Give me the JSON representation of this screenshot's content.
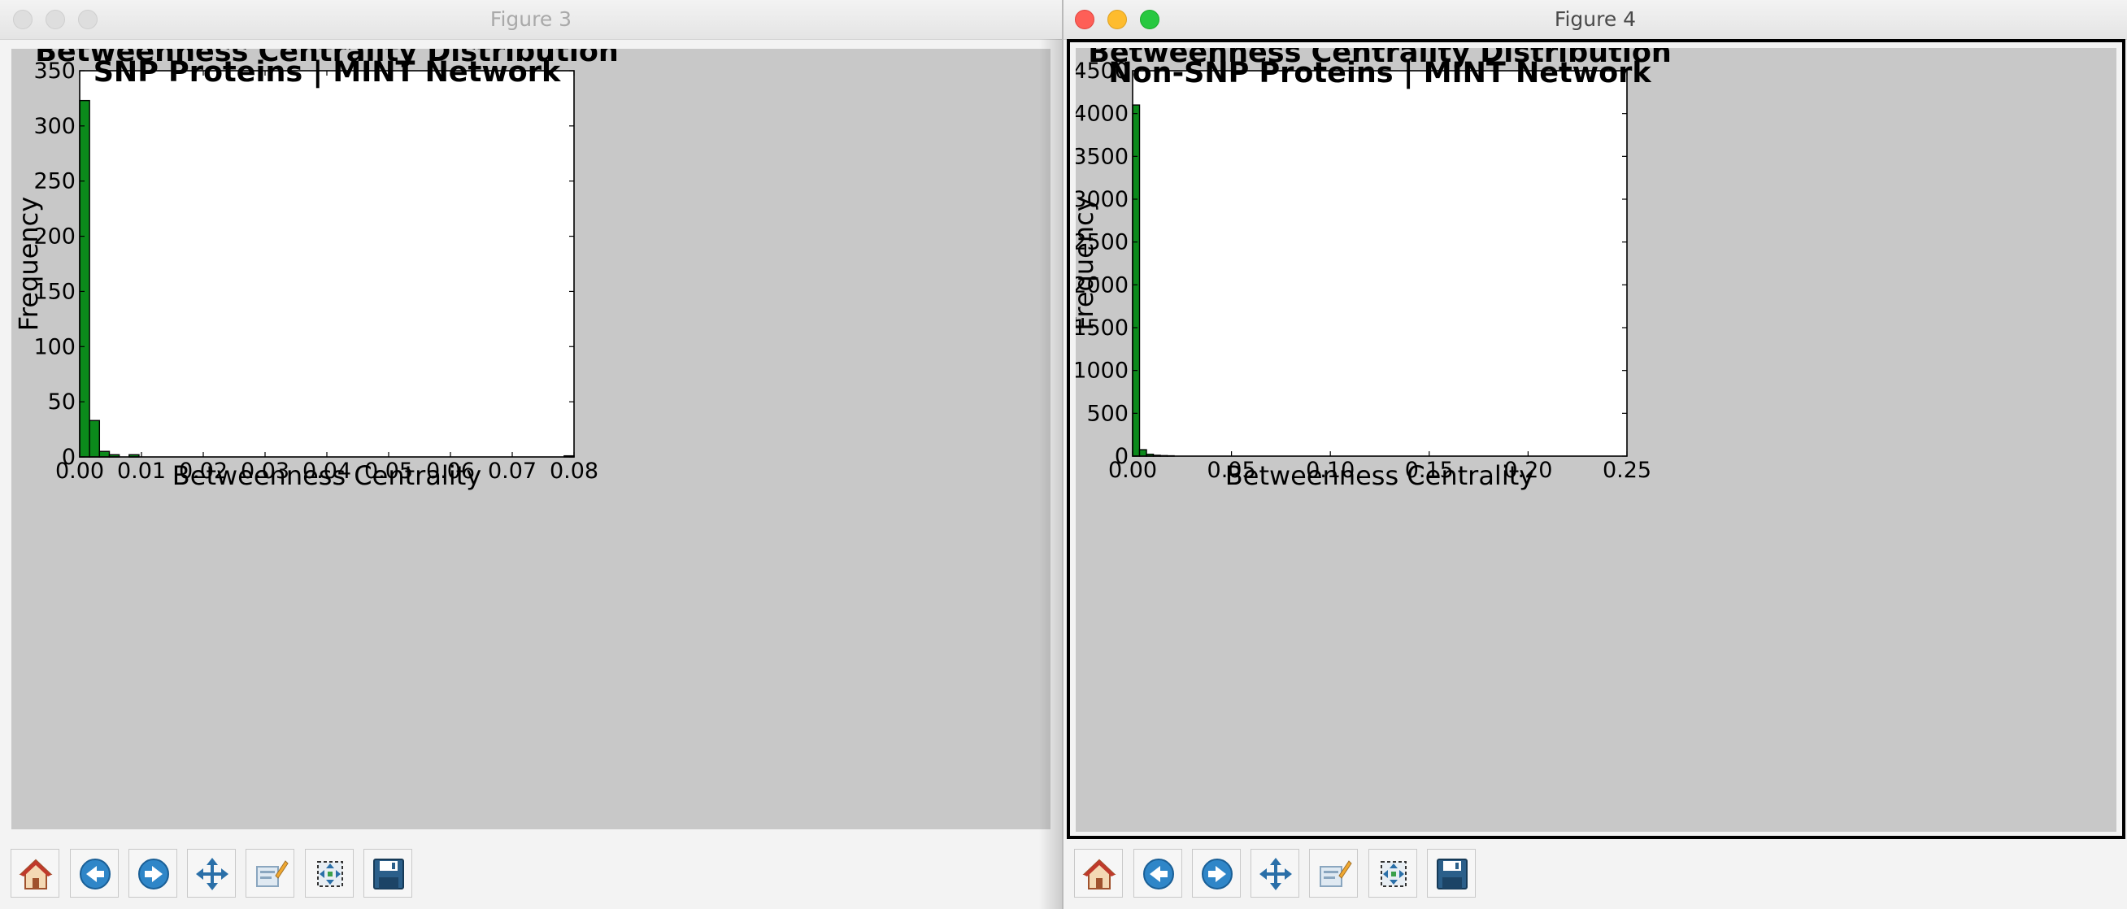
{
  "windows": [
    {
      "title": "Figure 3",
      "active": false
    },
    {
      "title": "Figure 4",
      "active": true
    }
  ],
  "colors": {
    "bar_fill": "#0b8a1b",
    "bar_edge": "#000000",
    "plot_bg": "#ffffff",
    "figure_bg": "#c8c8c8",
    "close": "#fe5f57",
    "minimize": "#febc2e",
    "zoom": "#28c840"
  },
  "toolbar_icons": [
    "home-icon",
    "back-arrow-icon",
    "forward-arrow-icon",
    "pan-icon",
    "configure-subplots-icon",
    "zoom-rect-icon",
    "save-icon"
  ],
  "chart_data": [
    {
      "type": "bar",
      "title": "Betweenness Centrality Distribution\nSNP Proteins | MINT Network",
      "title_lines": [
        "Betweenness Centrality Distribution",
        "SNP Proteins | MINT Network"
      ],
      "xlabel": "Betweenness Centrality",
      "ylabel": "Frequency",
      "xlim": [
        0,
        0.08
      ],
      "ylim": [
        0,
        350
      ],
      "xticks": [
        "0.00",
        "0.01",
        "0.02",
        "0.03",
        "0.04",
        "0.05",
        "0.06",
        "0.07",
        "0.08"
      ],
      "xtick_values": [
        0,
        0.01,
        0.02,
        0.03,
        0.04,
        0.05,
        0.06,
        0.07,
        0.08
      ],
      "yticks": [
        "0",
        "50",
        "100",
        "150",
        "200",
        "250",
        "300",
        "350"
      ],
      "ytick_values": [
        0,
        50,
        100,
        150,
        200,
        250,
        300,
        350
      ],
      "bin_width": 0.0016,
      "bins": [
        {
          "x": 0.0,
          "value": 323
        },
        {
          "x": 0.0016,
          "value": 33
        },
        {
          "x": 0.0032,
          "value": 5
        },
        {
          "x": 0.0048,
          "value": 2
        },
        {
          "x": 0.008,
          "value": 2
        },
        {
          "x": 0.0784,
          "value": 1
        }
      ],
      "grid": false,
      "legend": false
    },
    {
      "type": "bar",
      "title": "Betweenness Centrality Distribution\nNon-SNP Proteins | MINT Network",
      "title_lines": [
        "Betweenness Centrality Distribution",
        "Non-SNP Proteins | MINT Network"
      ],
      "xlabel": "Betweenness Centrality",
      "ylabel": "Frequency",
      "xlim": [
        0,
        0.25
      ],
      "ylim": [
        0,
        4500
      ],
      "xticks": [
        "0.00",
        "0.05",
        "0.10",
        "0.15",
        "0.20",
        "0.25"
      ],
      "xtick_values": [
        0,
        0.05,
        0.1,
        0.15,
        0.2,
        0.25
      ],
      "yticks": [
        "0",
        "500",
        "1000",
        "1500",
        "2000",
        "2500",
        "3000",
        "3500",
        "4000",
        "4500"
      ],
      "ytick_values": [
        0,
        500,
        1000,
        1500,
        2000,
        2500,
        3000,
        3500,
        4000,
        4500
      ],
      "bin_width": 0.0035,
      "bins": [
        {
          "x": 0.0,
          "value": 4100
        },
        {
          "x": 0.0035,
          "value": 75
        },
        {
          "x": 0.007,
          "value": 22
        },
        {
          "x": 0.0105,
          "value": 10
        },
        {
          "x": 0.014,
          "value": 6
        },
        {
          "x": 0.0175,
          "value": 4
        }
      ],
      "grid": false,
      "legend": false
    }
  ]
}
